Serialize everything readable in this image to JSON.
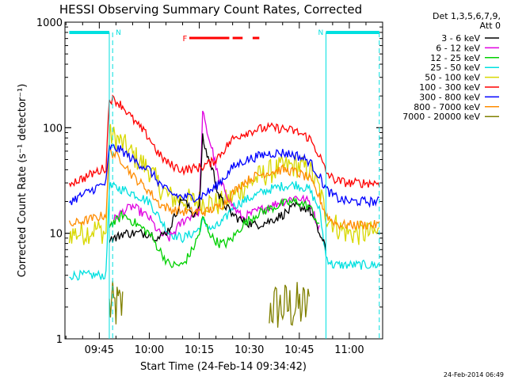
{
  "chart_data": {
    "type": "line",
    "title": "HESSI Observing Summary Count Rates, Corrected",
    "xlabel": "Start Time (24-Feb-14 09:34:42)",
    "ylabel": "Corrected Count Rate (s⁻¹ detector⁻¹)",
    "yscale": "log",
    "ylim": [
      1,
      1000
    ],
    "xlim": [
      "09:34:42",
      "11:10:00"
    ],
    "x_ticks": [
      "09:45",
      "10:00",
      "10:15",
      "10:30",
      "10:45",
      "11:00"
    ],
    "y_ticks": [
      "1",
      "10",
      "100",
      "1000"
    ],
    "legend": {
      "placement": "outside-right",
      "header": [
        "Det 1,3,5,6,7,9,",
        "Att 0"
      ]
    },
    "footer_date": "24-Feb-2014 06:49",
    "annotations": {
      "night_markers": [
        "N",
        "N"
      ],
      "flare_label": "F",
      "flare_intervals": [
        [
          "10:12",
          "10:24"
        ],
        [
          "10:25",
          "10:28"
        ],
        [
          "10:31",
          "10:33"
        ]
      ]
    },
    "times": [
      "09:36",
      "09:40",
      "09:44",
      "09:47",
      "09:48",
      "09:50",
      "09:52",
      "09:55",
      "10:00",
      "10:03",
      "10:06",
      "10:10",
      "10:13",
      "10:15",
      "10:16",
      "10:17",
      "10:19",
      "10:21",
      "10:23",
      "10:25",
      "10:28",
      "10:32",
      "10:36",
      "10:40",
      "10:44",
      "10:48",
      "10:51",
      "10:53",
      "10:55",
      "10:57",
      "11:00",
      "11:05",
      "11:09"
    ],
    "series": [
      {
        "name": "3 - 6 keV",
        "color": "#000000",
        "values": [
          null,
          null,
          null,
          null,
          9,
          9,
          10,
          10,
          10,
          9,
          11,
          22,
          15,
          17,
          80,
          60,
          40,
          22,
          18,
          15,
          13,
          12,
          13,
          15,
          18,
          17,
          10,
          7,
          null,
          null,
          null,
          null,
          null
        ]
      },
      {
        "name": "6 - 12 keV",
        "color": "#e000e0",
        "values": [
          null,
          null,
          null,
          null,
          12,
          14,
          16,
          18,
          14,
          10,
          9,
          13,
          15,
          16,
          140,
          100,
          60,
          30,
          25,
          18,
          14,
          16,
          18,
          20,
          22,
          20,
          11,
          null,
          null,
          null,
          null,
          null,
          null
        ]
      },
      {
        "name": "12 - 25 keV",
        "color": "#00d000",
        "values": [
          null,
          null,
          null,
          null,
          12,
          13,
          15,
          13,
          10,
          7,
          5,
          5,
          7,
          10,
          14,
          12,
          9,
          8,
          8,
          9,
          12,
          15,
          17,
          19,
          20,
          18,
          12,
          null,
          null,
          null,
          null,
          null,
          null
        ]
      },
      {
        "name": "25 - 50 keV",
        "color": "#00e0e0",
        "values": [
          4,
          4,
          4,
          4,
          28,
          27,
          26,
          24,
          20,
          14,
          10,
          9,
          10,
          11,
          13,
          12,
          11,
          12,
          14,
          18,
          20,
          23,
          26,
          28,
          29,
          26,
          17,
          6,
          5,
          5,
          5,
          5,
          5
        ]
      },
      {
        "name": "50 - 100 keV",
        "color": "#d8d800",
        "values": [
          10,
          10,
          11,
          10,
          85,
          80,
          70,
          55,
          40,
          28,
          22,
          21,
          20,
          20,
          20,
          20,
          19,
          19,
          20,
          22,
          27,
          33,
          38,
          42,
          44,
          40,
          26,
          15,
          13,
          11,
          10,
          10,
          10
        ]
      },
      {
        "name": "100 - 300 keV",
        "color": "#ff0000",
        "values": [
          30,
          33,
          38,
          42,
          190,
          180,
          160,
          120,
          80,
          55,
          45,
          40,
          41,
          42,
          43,
          45,
          47,
          55,
          65,
          78,
          88,
          96,
          100,
          98,
          92,
          80,
          55,
          38,
          33,
          31,
          30,
          30,
          30
        ]
      },
      {
        "name": "300 - 800 keV",
        "color": "#0000ff",
        "values": [
          20,
          23,
          27,
          30,
          65,
          64,
          60,
          50,
          40,
          30,
          24,
          22,
          22,
          22,
          23,
          24,
          26,
          30,
          35,
          42,
          48,
          53,
          57,
          58,
          55,
          48,
          35,
          26,
          23,
          21,
          20,
          20,
          20
        ]
      },
      {
        "name": "800 - 7000 keV",
        "color": "#ff8c00",
        "values": [
          12,
          13,
          14,
          15,
          60,
          55,
          48,
          35,
          25,
          19,
          17,
          16,
          16,
          16,
          16,
          16,
          17,
          18,
          20,
          24,
          30,
          35,
          38,
          40,
          38,
          33,
          22,
          15,
          13,
          12,
          12,
          12,
          12
        ]
      },
      {
        "name": "7000 - 20000 keV",
        "color": "#808000",
        "values": [
          null,
          null,
          null,
          null,
          2,
          2,
          2,
          null,
          null,
          null,
          null,
          null,
          null,
          null,
          null,
          null,
          null,
          null,
          null,
          null,
          null,
          null,
          2,
          2,
          2,
          2,
          null,
          null,
          null,
          null,
          null,
          null,
          null
        ]
      }
    ]
  }
}
